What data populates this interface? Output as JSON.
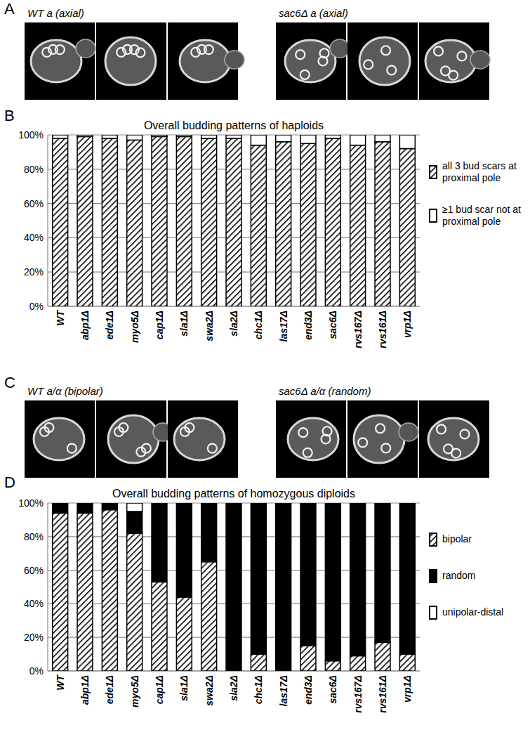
{
  "panels": [
    {
      "label": "A",
      "captions": [
        "WT a (axial)",
        "sac6Δ a (axial)"
      ]
    },
    {
      "label": "B"
    },
    {
      "label": "C",
      "captions": [
        "WT a/α (bipolar)",
        "sac6Δ a/α (random)"
      ]
    },
    {
      "label": "D"
    }
  ],
  "chart_data": [
    {
      "type": "bar",
      "stacked": true,
      "grid": true,
      "legend": "right",
      "title": "Overall budding patterns of haploids",
      "categories": [
        "WT",
        "abp1Δ",
        "ede1Δ",
        "myo5Δ",
        "cap1Δ",
        "sla1Δ",
        "swa2Δ",
        "sla2Δ",
        "chc1Δ",
        "las17Δ",
        "end3Δ",
        "sac6Δ",
        "rvs167Δ",
        "rvs161Δ",
        "vrp1Δ"
      ],
      "ylim": [
        0,
        100
      ],
      "yticks": [
        {
          "value": 0,
          "label": "0%"
        },
        {
          "value": 20,
          "label": "20%"
        },
        {
          "value": 40,
          "label": "40%"
        },
        {
          "value": 60,
          "label": "60%"
        },
        {
          "value": 80,
          "label": "80%"
        },
        {
          "value": 100,
          "label": "100%"
        }
      ],
      "series": [
        {
          "name": "all 3 bud scars at proximal pole",
          "color": "#000000",
          "line_style": "hatched",
          "values": [
            98,
            99,
            98,
            97,
            99,
            99,
            98,
            98,
            94,
            96,
            95,
            98,
            94,
            96,
            92
          ]
        },
        {
          "name": "≥1 bud scar not at proximal pole",
          "color": "#ffffff",
          "values": [
            2,
            1,
            2,
            3,
            1,
            1,
            2,
            2,
            6,
            4,
            5,
            2,
            6,
            4,
            8
          ]
        }
      ]
    },
    {
      "type": "bar",
      "stacked": true,
      "grid": true,
      "legend": "right",
      "title": "Overall budding patterns of homozygous diploids",
      "categories": [
        "WT",
        "abp1Δ",
        "ede1Δ",
        "myo5Δ",
        "cap1Δ",
        "sla1Δ",
        "swa2Δ",
        "sla2Δ",
        "chc1Δ",
        "las17Δ",
        "end3Δ",
        "sac6Δ",
        "rvs167Δ",
        "rvs161Δ",
        "vrp1Δ"
      ],
      "ylim": [
        0,
        100
      ],
      "yticks": [
        {
          "value": 0,
          "label": "0%"
        },
        {
          "value": 20,
          "label": "20%"
        },
        {
          "value": 40,
          "label": "40%"
        },
        {
          "value": 60,
          "label": "60%"
        },
        {
          "value": 80,
          "label": "80%"
        },
        {
          "value": 100,
          "label": "100%"
        }
      ],
      "series": [
        {
          "name": "bipolar",
          "color": "#000000",
          "line_style": "hatched",
          "values": [
            94,
            94,
            96,
            82,
            53,
            44,
            65,
            0,
            10,
            0,
            15,
            6,
            9,
            17,
            10
          ]
        },
        {
          "name": "random",
          "color": "#000000",
          "values": [
            6,
            6,
            4,
            13,
            47,
            56,
            35,
            100,
            90,
            100,
            85,
            94,
            91,
            83,
            90
          ]
        },
        {
          "name": "unipolar-distal",
          "color": "#ffffff",
          "values": [
            0,
            0,
            0,
            5,
            0,
            0,
            0,
            0,
            0,
            0,
            0,
            0,
            0,
            0,
            0
          ]
        }
      ]
    }
  ]
}
